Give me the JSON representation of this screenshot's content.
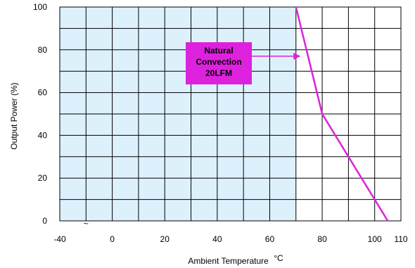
{
  "chart_data": {
    "type": "line",
    "xlabel": "Ambient Temperature",
    "xunit": "°C",
    "ylabel": "Output Power  (%)",
    "xlim": [
      -40,
      110
    ],
    "ylim": [
      0,
      100
    ],
    "x_ticks": [
      -40,
      0,
      20,
      40,
      60,
      80,
      100,
      110
    ],
    "x_tick_labels": [
      "-40",
      "0",
      "20",
      "40",
      "60",
      "80",
      "100",
      "110"
    ],
    "x_break_symbol": "~",
    "y_ticks": [
      0,
      20,
      40,
      60,
      80,
      100
    ],
    "y_tick_labels": [
      "0",
      "20",
      "40",
      "60",
      "80",
      "100"
    ],
    "grid": true,
    "safe_region": {
      "x_from": -40,
      "x_to": 70
    },
    "series": [
      {
        "color": "#dd22dd",
        "points": [
          [
            70,
            100
          ],
          [
            80,
            50
          ],
          [
            105,
            0
          ]
        ]
      }
    ],
    "annotation": {
      "lines": [
        "Natural",
        "Convection",
        "20LFM"
      ],
      "arrow_target": [
        72,
        77
      ],
      "box_color": "#dd22dd",
      "text_color": "#ffffff"
    },
    "colors": {
      "safe_fill": "#ddf1fd",
      "grid": "#000000"
    }
  }
}
